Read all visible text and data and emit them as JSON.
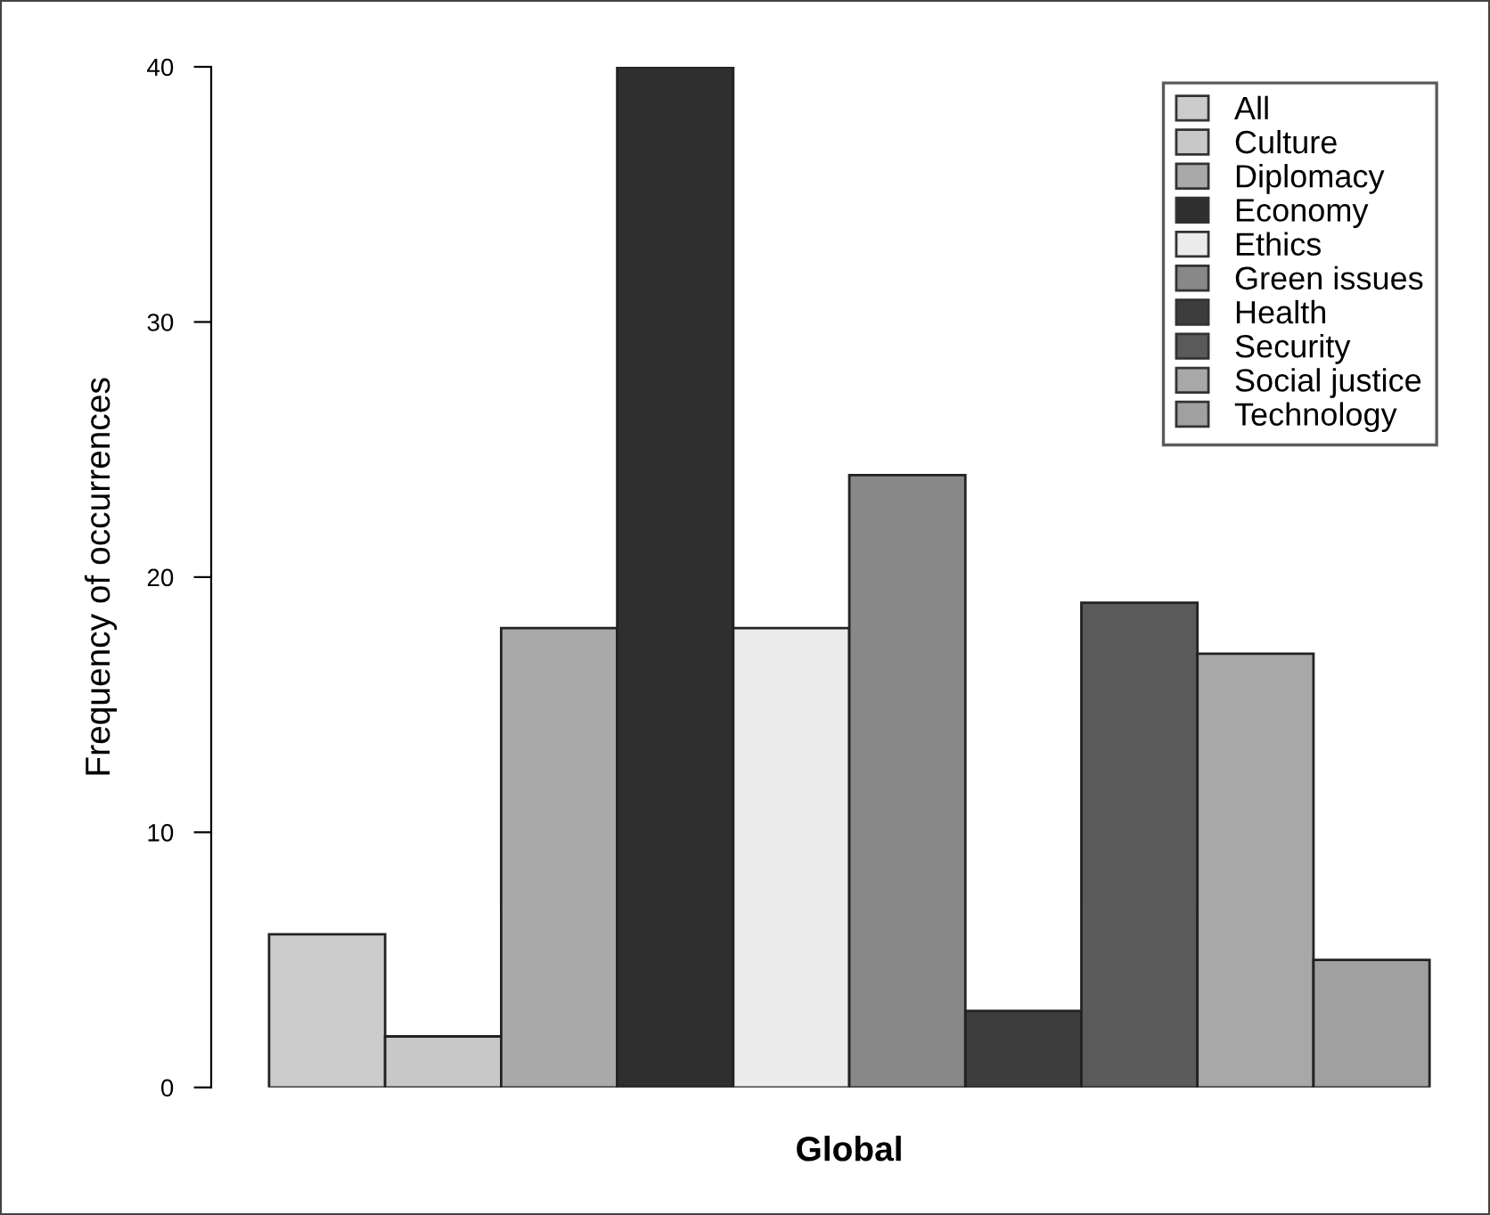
{
  "chart_data": {
    "type": "bar",
    "xlabel": "Global",
    "ylabel": "Frequency of occurrences",
    "categories": [
      null
    ],
    "series": [
      {
        "name": "All",
        "color": "#cccccc",
        "values": [
          6
        ]
      },
      {
        "name": "Culture",
        "color": "#c8c8c8",
        "values": [
          2
        ]
      },
      {
        "name": "Diplomacy",
        "color": "#a9a9a9",
        "values": [
          18
        ]
      },
      {
        "name": "Economy",
        "color": "#2f2f2f",
        "values": [
          40
        ]
      },
      {
        "name": "Ethics",
        "color": "#ebebeb",
        "values": [
          18
        ]
      },
      {
        "name": "Green issues",
        "color": "#888888",
        "values": [
          24
        ]
      },
      {
        "name": "Health",
        "color": "#3d3d3d",
        "values": [
          3
        ]
      },
      {
        "name": "Security",
        "color": "#5a5a5a",
        "values": [
          19
        ]
      },
      {
        "name": "Social justice",
        "color": "#a8a8a8",
        "values": [
          17
        ]
      },
      {
        "name": "Technology",
        "color": "#a0a0a0",
        "values": [
          5
        ]
      }
    ],
    "ylim": [
      0,
      40
    ],
    "yticks": [
      0,
      10,
      20,
      30,
      40
    ],
    "grid": false,
    "legend": "top right"
  }
}
